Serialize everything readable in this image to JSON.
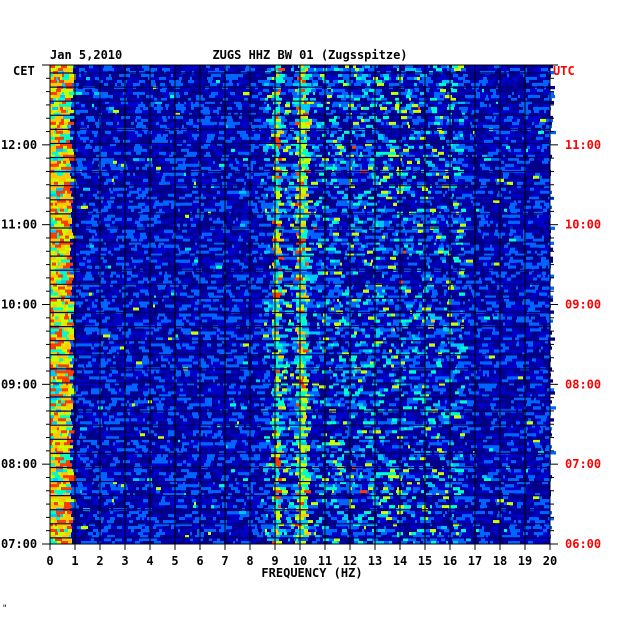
{
  "chart_data": {
    "type": "heatmap",
    "title_date": "Jan 5,2010",
    "title_station": "ZUGS HHZ BW 01 (Zugsspitze)",
    "xlabel": "FREQUENCY (HZ)",
    "xlim": [
      0,
      20
    ],
    "x_ticks": [
      "0",
      "1",
      "2",
      "3",
      "4",
      "5",
      "6",
      "7",
      "8",
      "9",
      "10",
      "11",
      "12",
      "13",
      "14",
      "15",
      "16",
      "17",
      "18",
      "19",
      "20"
    ],
    "left_axis_label": "CET",
    "right_axis_label": "UTC",
    "left_ticks": [
      "07:00",
      "08:00",
      "09:00",
      "10:00",
      "11:00",
      "12:00"
    ],
    "right_ticks": [
      "06:00",
      "07:00",
      "08:00",
      "09:00",
      "10:00",
      "11:00"
    ],
    "time_range_cet": [
      "07:00",
      "13:00"
    ],
    "colormap": [
      "#00008c",
      "#0000ff",
      "#0064ff",
      "#00c8ff",
      "#00ffc8",
      "#c8ff00",
      "#ffc800",
      "#ff3c00"
    ],
    "background_color": "#0000c8",
    "right_label_color": "#ff0000",
    "grid": true
  },
  "corner_mark": "\""
}
